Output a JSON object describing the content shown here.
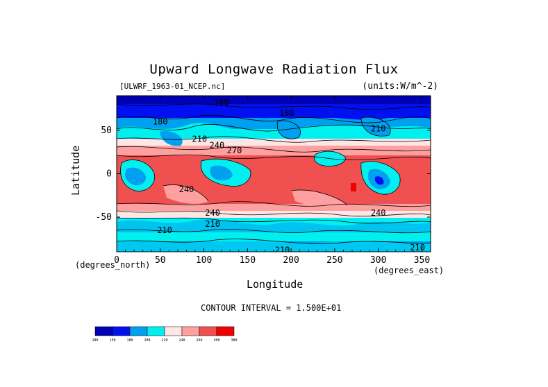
{
  "chart_data": {
    "type": "heatmap",
    "title": "Upward Longwave Radiation Flux",
    "source_label": "[ULWRF_1963-01_NCEP.nc]",
    "units_label": "(units:W/m^-2)",
    "xlabel": "Longitude",
    "ylabel": "Latitude",
    "x_units_label": "(degrees_east)",
    "y_units_label": "(degrees_north)",
    "xlim": [
      0,
      360
    ],
    "ylim": [
      -90,
      90
    ],
    "x_ticks": [
      "0",
      "50",
      "100",
      "150",
      "200",
      "250",
      "300",
      "350"
    ],
    "x_tick_values": [
      0,
      50,
      100,
      150,
      200,
      250,
      300,
      350
    ],
    "y_ticks": [
      "50",
      "0",
      "-50"
    ],
    "y_tick_values": [
      50,
      0,
      -50
    ],
    "contour_interval_label": "CONTOUR INTERVAL = 1.500E+01",
    "contour_labels": [
      {
        "text": "180",
        "lon": 120,
        "lat": 82
      },
      {
        "text": "180",
        "lon": 195,
        "lat": 70
      },
      {
        "text": "180",
        "lon": 50,
        "lat": 60
      },
      {
        "text": "210",
        "lon": 300,
        "lat": 52
      },
      {
        "text": "210",
        "lon": 95,
        "lat": 40
      },
      {
        "text": "240",
        "lon": 115,
        "lat": 33
      },
      {
        "text": "270",
        "lon": 135,
        "lat": 27
      },
      {
        "text": "240",
        "lon": 80,
        "lat": -18
      },
      {
        "text": "240",
        "lon": 110,
        "lat": -45
      },
      {
        "text": "240",
        "lon": 300,
        "lat": -45
      },
      {
        "text": "210",
        "lon": 55,
        "lat": -65
      },
      {
        "text": "210",
        "lon": 110,
        "lat": -58
      },
      {
        "text": "210",
        "lon": 345,
        "lat": -85
      },
      {
        "text": "210",
        "lon": 190,
        "lat": -88
      }
    ],
    "legend_levels": [
      "180",
      "150",
      "180",
      "200",
      "220",
      "240",
      "260",
      "300",
      "380"
    ],
    "legend_colors": [
      "#0000b4",
      "#0010f0",
      "#00a0f0",
      "#00f0f0",
      "#ffe6e6",
      "#ffa0a0",
      "#f05050",
      "#f00000"
    ],
    "grid": false
  }
}
